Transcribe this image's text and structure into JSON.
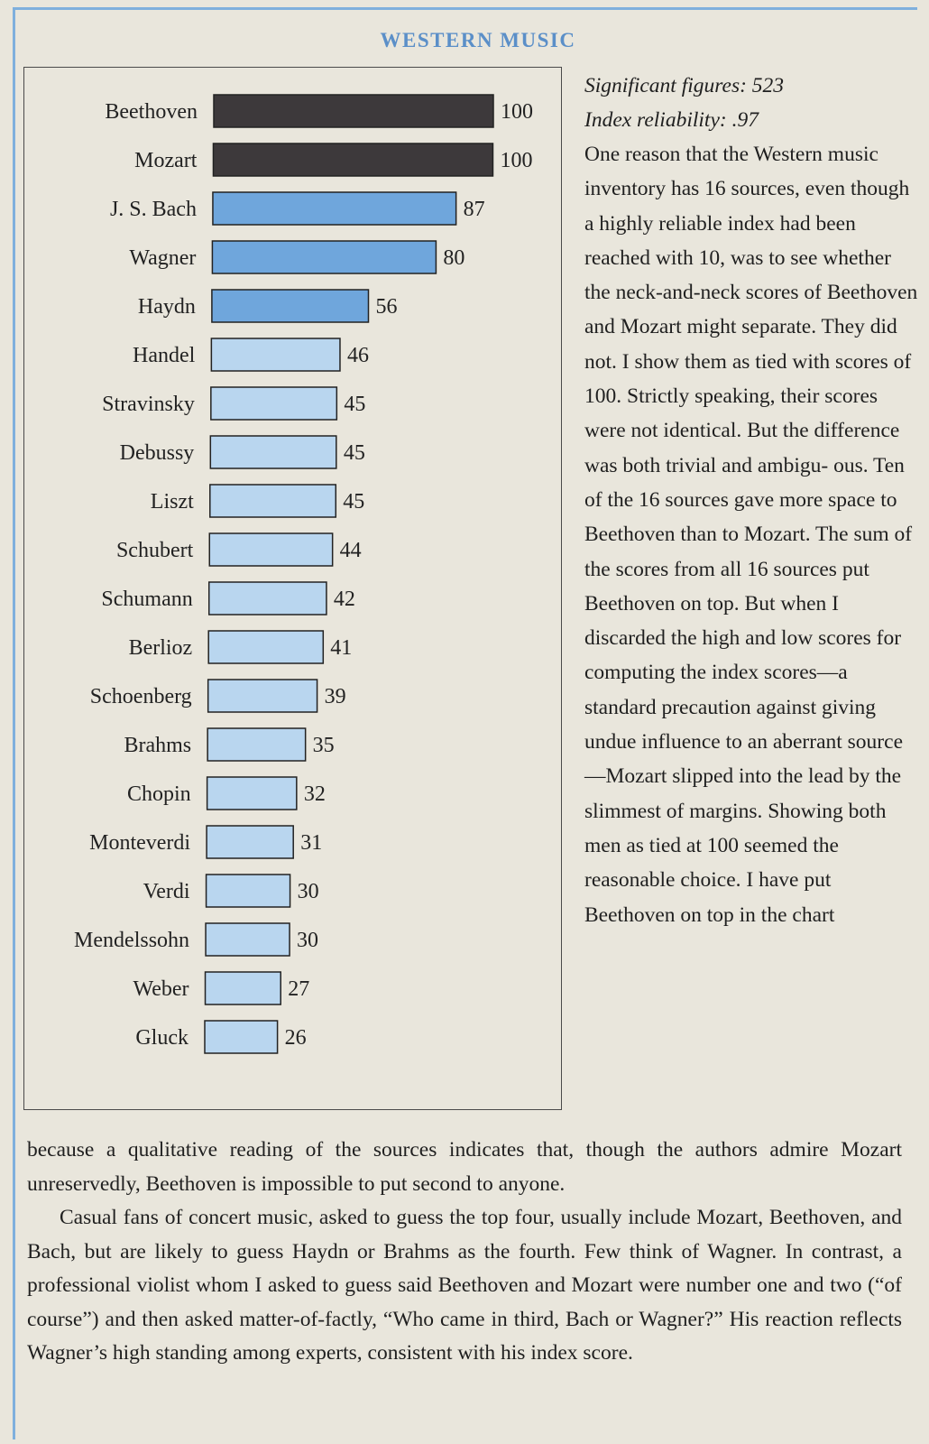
{
  "heading": "WESTERN MUSIC",
  "sidebar": {
    "significant_figures": "Significant figures: 523",
    "index_reliability": "Index reliability: .97",
    "body": "One reason that the Western music inventory has 16 sources, even though a highly reliable index had been reached with 10, was to see whether the neck-and-neck scores of Beethoven and Mozart might separate. They did not. I show them as tied with scores of 100. Strictly speaking, their scores were not identical. But the difference was both trivial and ambigu- ous. Ten of the 16 sources gave more space to Beethoven than to Mozart. The sum of the scores from all 16 sources put Beethoven on top. But when I discarded the high and low scores for computing the index scores—a standard precaution against giving undue influence to an aberrant source—Mozart slipped into the lead by the slimmest of margins. Showing both men as tied at 100 seemed the reasonable choice. I have put Beethoven on top in the chart"
  },
  "bottom": {
    "para1": "because a qualitative reading of the sources indicates that, though the authors admire Mozart unreservedly, Beethoven is impossible to put second to anyone.",
    "para2": "Casual fans of concert music, asked to guess the top four, usually include Mozart, Beethoven, and Bach, but are likely to guess Haydn or Brahms as the fourth. Few think of Wagner. In contrast, a professional violist whom I asked to guess said Beethoven and Mozart were number one and two (“of course”) and then asked matter-of-factly, “Who came in third, Bach or Wagner?” His reaction reflects Wagner’s high standing among experts, consistent with his index score."
  },
  "chart_data": {
    "type": "bar",
    "orientation": "horizontal",
    "categories": [
      "Beethoven",
      "Mozart",
      "J. S. Bach",
      "Wagner",
      "Haydn",
      "Handel",
      "Stravinsky",
      "Debussy",
      "Liszt",
      "Schubert",
      "Schumann",
      "Berlioz",
      "Schoenberg",
      "Brahms",
      "Chopin",
      "Monteverdi",
      "Verdi",
      "Mendelssohn",
      "Weber",
      "Gluck"
    ],
    "values": [
      100,
      100,
      87,
      80,
      56,
      46,
      45,
      45,
      45,
      44,
      42,
      41,
      39,
      35,
      32,
      31,
      30,
      30,
      27,
      26
    ],
    "xlim": [
      0,
      100
    ],
    "grid": false,
    "colors": {
      "top_tier": "#3d393b",
      "second_tier": "#6fa6dc",
      "third_tier": "#b9d6ef",
      "bar_outline": "#222222"
    }
  }
}
